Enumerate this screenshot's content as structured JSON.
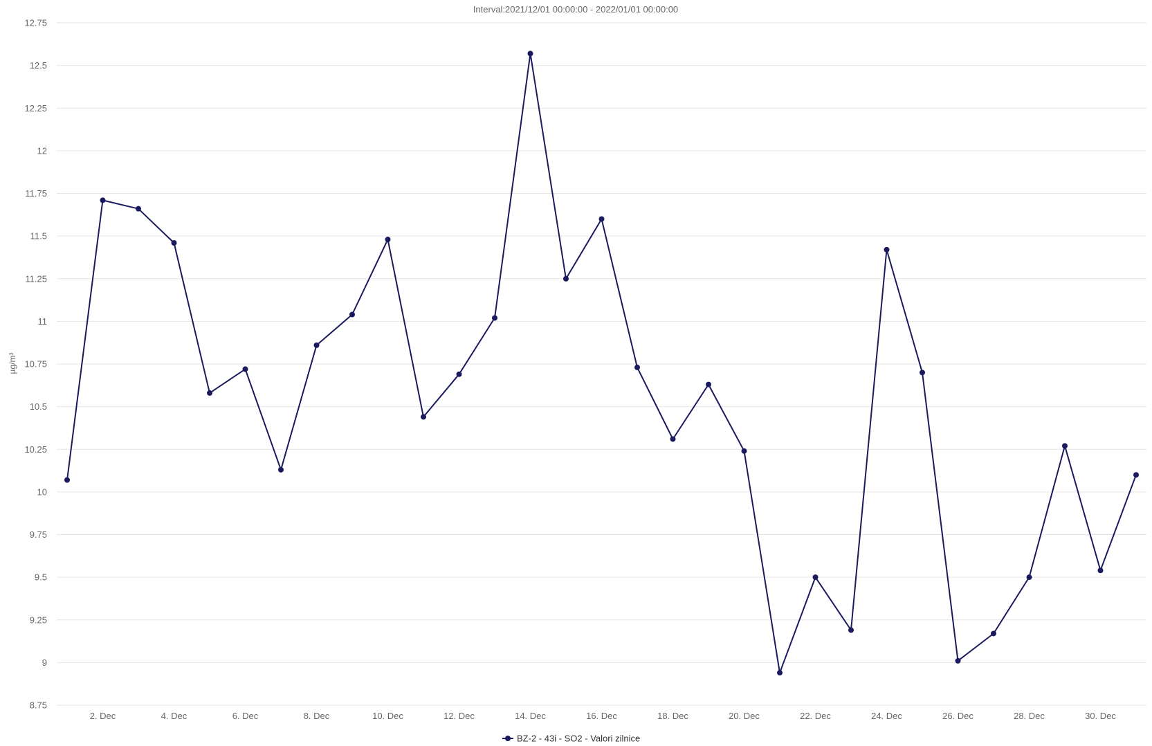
{
  "chart_data": {
    "type": "line",
    "title": "Interval:2021/12/01 00:00:00 - 2022/01/01 00:00:00",
    "xlabel": "",
    "ylabel": "µg/m³",
    "ylim": [
      8.75,
      12.75
    ],
    "yticks": [
      "8.75",
      "9",
      "9.25",
      "9.5",
      "9.75",
      "10",
      "10.25",
      "10.5",
      "10.75",
      "11",
      "11.25",
      "11.5",
      "11.75",
      "12",
      "12.25",
      "12.5",
      "12.75"
    ],
    "xlim": [
      "2021-12-01",
      "2021-12-31"
    ],
    "x": [
      "2021-12-01",
      "2021-12-02",
      "2021-12-03",
      "2021-12-04",
      "2021-12-05",
      "2021-12-06",
      "2021-12-07",
      "2021-12-08",
      "2021-12-09",
      "2021-12-10",
      "2021-12-11",
      "2021-12-12",
      "2021-12-13",
      "2021-12-14",
      "2021-12-15",
      "2021-12-16",
      "2021-12-17",
      "2021-12-18",
      "2021-12-19",
      "2021-12-20",
      "2021-12-21",
      "2021-12-22",
      "2021-12-23",
      "2021-12-24",
      "2021-12-25",
      "2021-12-26",
      "2021-12-27",
      "2021-12-28",
      "2021-12-29",
      "2021-12-30",
      "2021-12-31"
    ],
    "xticks": [
      {
        "date": "2021-12-02",
        "label": "2. Dec"
      },
      {
        "date": "2021-12-04",
        "label": "4. Dec"
      },
      {
        "date": "2021-12-06",
        "label": "6. Dec"
      },
      {
        "date": "2021-12-08",
        "label": "8. Dec"
      },
      {
        "date": "2021-12-10",
        "label": "10. Dec"
      },
      {
        "date": "2021-12-12",
        "label": "12. Dec"
      },
      {
        "date": "2021-12-14",
        "label": "14. Dec"
      },
      {
        "date": "2021-12-16",
        "label": "16. Dec"
      },
      {
        "date": "2021-12-18",
        "label": "18. Dec"
      },
      {
        "date": "2021-12-20",
        "label": "20. Dec"
      },
      {
        "date": "2021-12-22",
        "label": "22. Dec"
      },
      {
        "date": "2021-12-24",
        "label": "24. Dec"
      },
      {
        "date": "2021-12-26",
        "label": "26. Dec"
      },
      {
        "date": "2021-12-28",
        "label": "28. Dec"
      },
      {
        "date": "2021-12-30",
        "label": "30. Dec"
      }
    ],
    "series": [
      {
        "name": "BZ-2 - 43i - SO2 - Valori zilnice",
        "color": "#1a1a5e",
        "values": [
          10.07,
          11.71,
          11.66,
          11.46,
          10.58,
          10.72,
          10.13,
          10.86,
          11.04,
          11.48,
          10.44,
          10.69,
          11.02,
          12.57,
          11.25,
          11.6,
          10.73,
          10.31,
          10.63,
          10.24,
          8.94,
          9.5,
          9.19,
          11.42,
          10.7,
          9.01,
          9.17,
          9.5,
          10.27,
          9.54,
          10.1
        ]
      }
    ],
    "grid": true,
    "legend": "bottom-center"
  }
}
